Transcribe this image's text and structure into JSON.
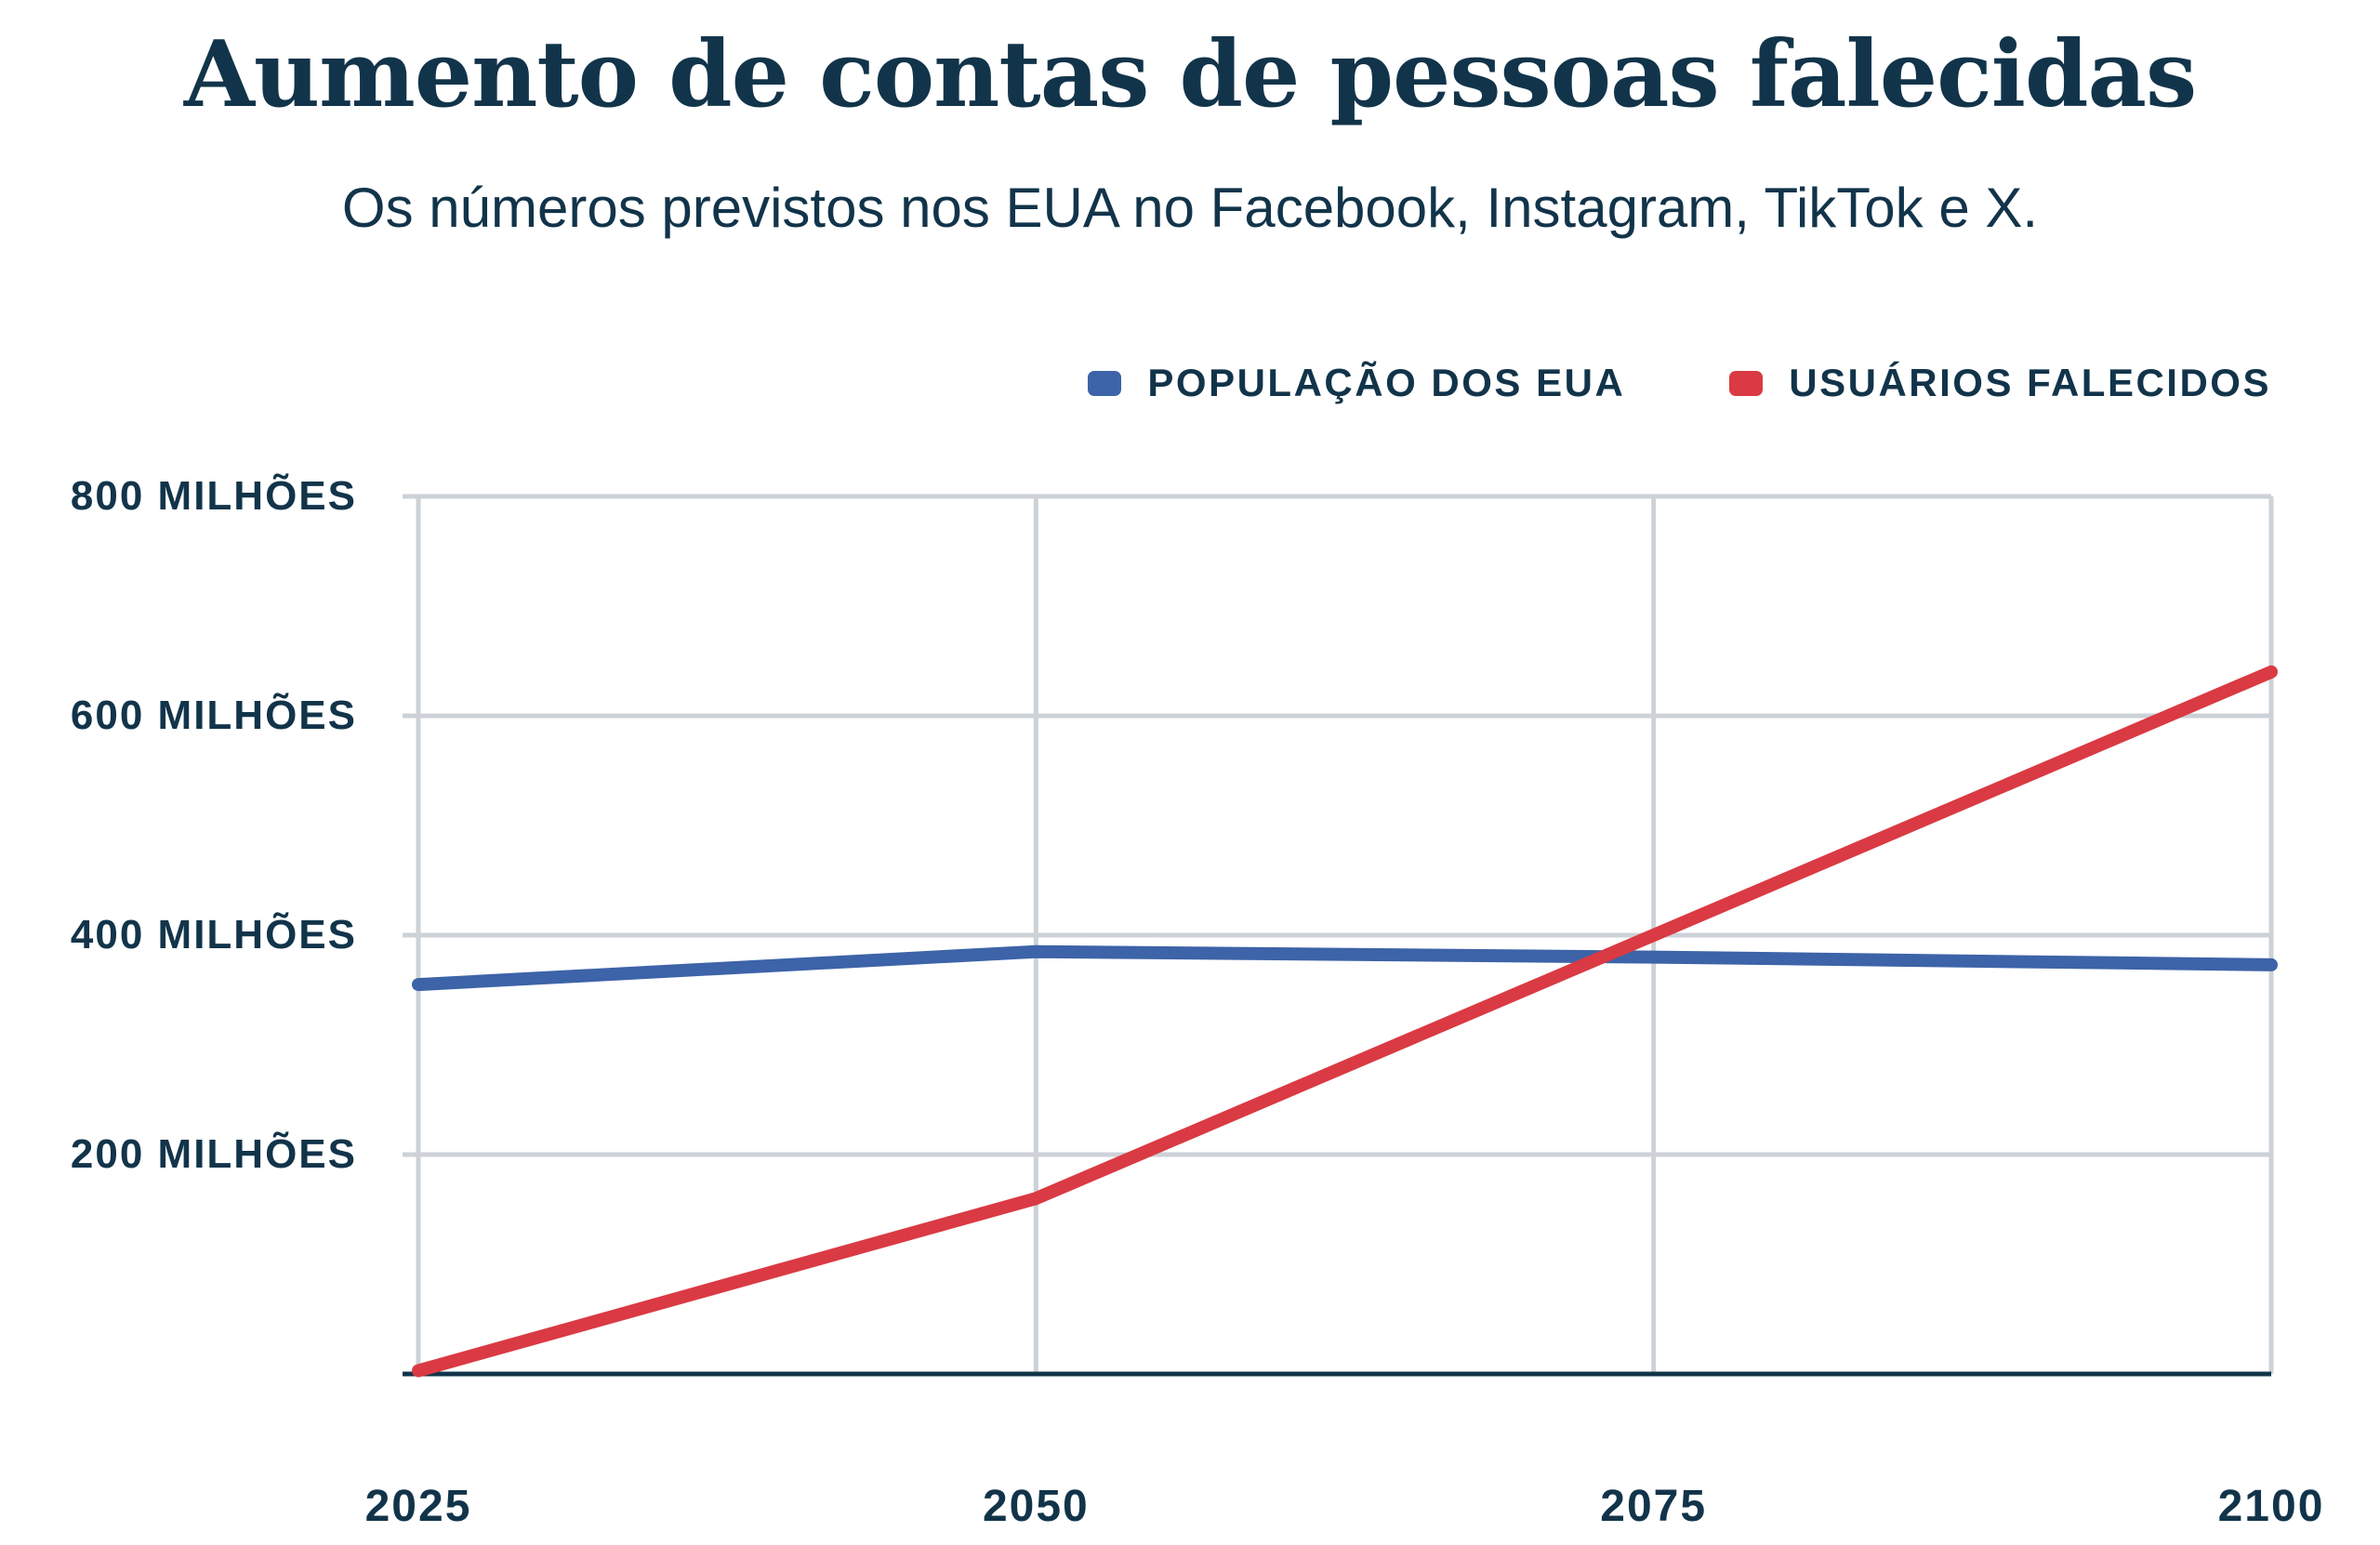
{
  "page": {
    "title": "Aumento de contas de pessoas falecidas",
    "subtitle": "Os números previstos nos EUA no Facebook, Instagram, TikTok e X."
  },
  "chart_data": {
    "type": "line",
    "title": "Aumento de contas de pessoas falecidas",
    "subtitle": "Os números previstos nos EUA no Facebook, Instagram, TikTok e X.",
    "x": [
      2025,
      2050,
      2075,
      2100
    ],
    "x_tick_labels": [
      "2025",
      "2050",
      "2075",
      "2100"
    ],
    "xlim": [
      2025,
      2100
    ],
    "y_ticks": [
      200,
      400,
      600,
      800
    ],
    "y_tick_labels": [
      "200 MILHÕES",
      "400 MILHÕES",
      "600 MILHÕES",
      "800 MILHÕES"
    ],
    "ylim": [
      0,
      800
    ],
    "unit_label": "milhões",
    "grid": true,
    "legend_position": "top-right",
    "series": [
      {
        "name": "POPULAÇÃO DOS EUA",
        "color": "#3d63a8",
        "values": [
          355,
          385,
          380,
          373
        ]
      },
      {
        "name": "USUÁRIOS FALECIDOS",
        "color": "#da3a43",
        "values": [
          3,
          160,
          400,
          640
        ]
      }
    ],
    "colors": {
      "text": "#12344a",
      "grid": "#ccd2d7",
      "axis": "#12344a",
      "background": "#ffffff"
    }
  }
}
